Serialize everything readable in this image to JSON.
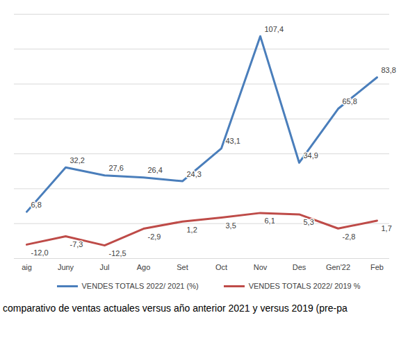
{
  "chart_data": {
    "type": "line",
    "caption": "comparativo de ventas actuales versus año anterior 2021 y versus 2019 (pre-pa",
    "categories": [
      "aig",
      "Juny",
      "Jul",
      "Ago",
      "Set",
      "Oct",
      "Nov",
      "Des",
      "Gen'22",
      "Feb"
    ],
    "series": [
      {
        "name": "VENDES TOTALS 2022/ 2021 (%)",
        "color": "#4a7ebb",
        "values": [
          6.8,
          32.2,
          27.6,
          26.4,
          24.3,
          43.1,
          107.4,
          34.9,
          65.8,
          83.8
        ],
        "value_labels": [
          "6,8",
          "32,2",
          "27,6",
          "26,4",
          "24,3",
          "43,1",
          "107,4",
          "34,9",
          "65,8",
          "83,8"
        ]
      },
      {
        "name": "VENDES TOTALS 2022/ 2019 %",
        "color": "#be4b48",
        "values": [
          -12.0,
          -7.3,
          -12.5,
          -2.9,
          1.2,
          3.5,
          6.1,
          5.3,
          -2.8,
          1.7
        ],
        "value_labels": [
          "-12,0",
          "-7,3",
          "-12,5",
          "-2,9",
          "1,2",
          "3,5",
          "6,1",
          "5,3",
          "-2,8",
          "1,7"
        ]
      }
    ],
    "ylim": [
      -20,
      120
    ],
    "yticks": [
      -20,
      0,
      20,
      40,
      60,
      80,
      100,
      120
    ],
    "grid": true,
    "data_labels": true,
    "tick_labels": "x"
  }
}
